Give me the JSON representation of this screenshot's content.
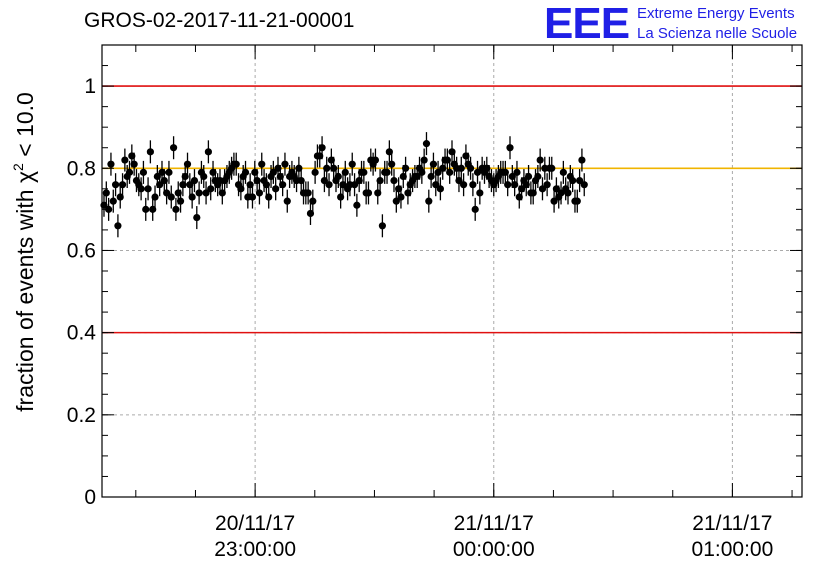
{
  "header": {
    "title": "GROS-02-2017-11-21-00001"
  },
  "logo": {
    "mark": "EEE",
    "line1": "Extreme Energy Events",
    "line2": "La Scienza nelle Scuole",
    "color": "#1f1fe6"
  },
  "chart_data": {
    "type": "scatter",
    "title": "GROS-02-2017-11-21-00001",
    "ylabel_main": "fraction of events with χ",
    "ylabel_sup": "2",
    "ylabel_tail": " < 10.0",
    "xlabel": "",
    "ylim": [
      0,
      1.1
    ],
    "x_axis": "time",
    "xlim": [
      "2017-11-20 22:21:30",
      "2017-11-21 01:17:30"
    ],
    "x_ticks": [
      {
        "value": "2017-11-20 23:00:00",
        "label_date": "20/11/17",
        "label_time": "23:00:00"
      },
      {
        "value": "2017-11-21 00:00:00",
        "label_date": "21/11/17",
        "label_time": "00:00:00"
      },
      {
        "value": "2017-11-21 01:00:00",
        "label_date": "21/11/17",
        "label_time": "01:00:00"
      }
    ],
    "y_ticks": [
      0,
      0.2,
      0.4,
      0.6,
      0.8,
      1
    ],
    "y_tick_labels": [
      "0",
      "0.2",
      "0.4",
      "0.6",
      "0.8",
      "1"
    ],
    "grid": true,
    "reference_lines": [
      {
        "y": 1.0,
        "color": "#e01010"
      },
      {
        "y": 0.4,
        "color": "#e01010"
      },
      {
        "y": 0.8,
        "color": "#f0b400"
      }
    ],
    "marker_color": "#000000",
    "series": [
      {
        "x_start": "2017-11-20 22:22:00",
        "x_step_seconds": 35,
        "error": 0.028,
        "y": [
          0.71,
          0.74,
          0.7,
          0.81,
          0.72,
          0.76,
          0.66,
          0.73,
          0.76,
          0.82,
          0.78,
          0.79,
          0.83,
          0.81,
          0.77,
          0.76,
          0.75,
          0.79,
          0.7,
          0.75,
          0.84,
          0.7,
          0.73,
          0.78,
          0.76,
          0.79,
          0.77,
          0.74,
          0.79,
          0.73,
          0.85,
          0.7,
          0.74,
          0.72,
          0.76,
          0.78,
          0.81,
          0.76,
          0.73,
          0.77,
          0.68,
          0.74,
          0.79,
          0.78,
          0.74,
          0.84,
          0.75,
          0.79,
          0.77,
          0.76,
          0.77,
          0.74,
          0.77,
          0.78,
          0.79,
          0.8,
          0.81,
          0.81,
          0.76,
          0.75,
          0.78,
          0.79,
          0.73,
          0.76,
          0.73,
          0.79,
          0.77,
          0.74,
          0.81,
          0.77,
          0.76,
          0.73,
          0.78,
          0.79,
          0.75,
          0.8,
          0.78,
          0.76,
          0.81,
          0.72,
          0.78,
          0.79,
          0.78,
          0.77,
          0.8,
          0.77,
          0.74,
          0.74,
          0.74,
          0.69,
          0.72,
          0.79,
          0.83,
          0.83,
          0.85,
          0.77,
          0.8,
          0.76,
          0.82,
          0.8,
          0.77,
          0.78,
          0.73,
          0.76,
          0.79,
          0.75,
          0.76,
          0.81,
          0.76,
          0.71,
          0.77,
          0.79,
          0.79,
          0.74,
          0.74,
          0.82,
          0.81,
          0.82,
          0.74,
          0.77,
          0.66,
          0.79,
          0.79,
          0.84,
          0.81,
          0.77,
          0.72,
          0.75,
          0.73,
          0.78,
          0.8,
          0.74,
          0.76,
          0.77,
          0.78,
          0.78,
          0.8,
          0.79,
          0.82,
          0.86,
          0.72,
          0.78,
          0.81,
          0.76,
          0.79,
          0.75,
          0.8,
          0.82,
          0.82,
          0.79,
          0.84,
          0.81,
          0.8,
          0.77,
          0.8,
          0.76,
          0.83,
          0.81,
          0.8,
          0.76,
          0.7,
          0.79,
          0.74,
          0.8,
          0.79,
          0.8,
          0.78,
          0.77,
          0.76,
          0.77,
          0.78,
          0.79,
          0.79,
          0.79,
          0.76,
          0.85,
          0.78,
          0.76,
          0.79,
          0.73,
          0.75,
          0.77,
          0.76,
          0.78,
          0.74,
          0.74,
          0.77,
          0.78,
          0.82,
          0.75,
          0.8,
          0.76,
          0.8,
          0.8,
          0.72,
          0.75,
          0.73,
          0.74,
          0.79,
          0.75,
          0.74,
          0.78,
          0.77,
          0.72,
          0.72,
          0.77,
          0.82,
          0.76
        ]
      }
    ]
  }
}
